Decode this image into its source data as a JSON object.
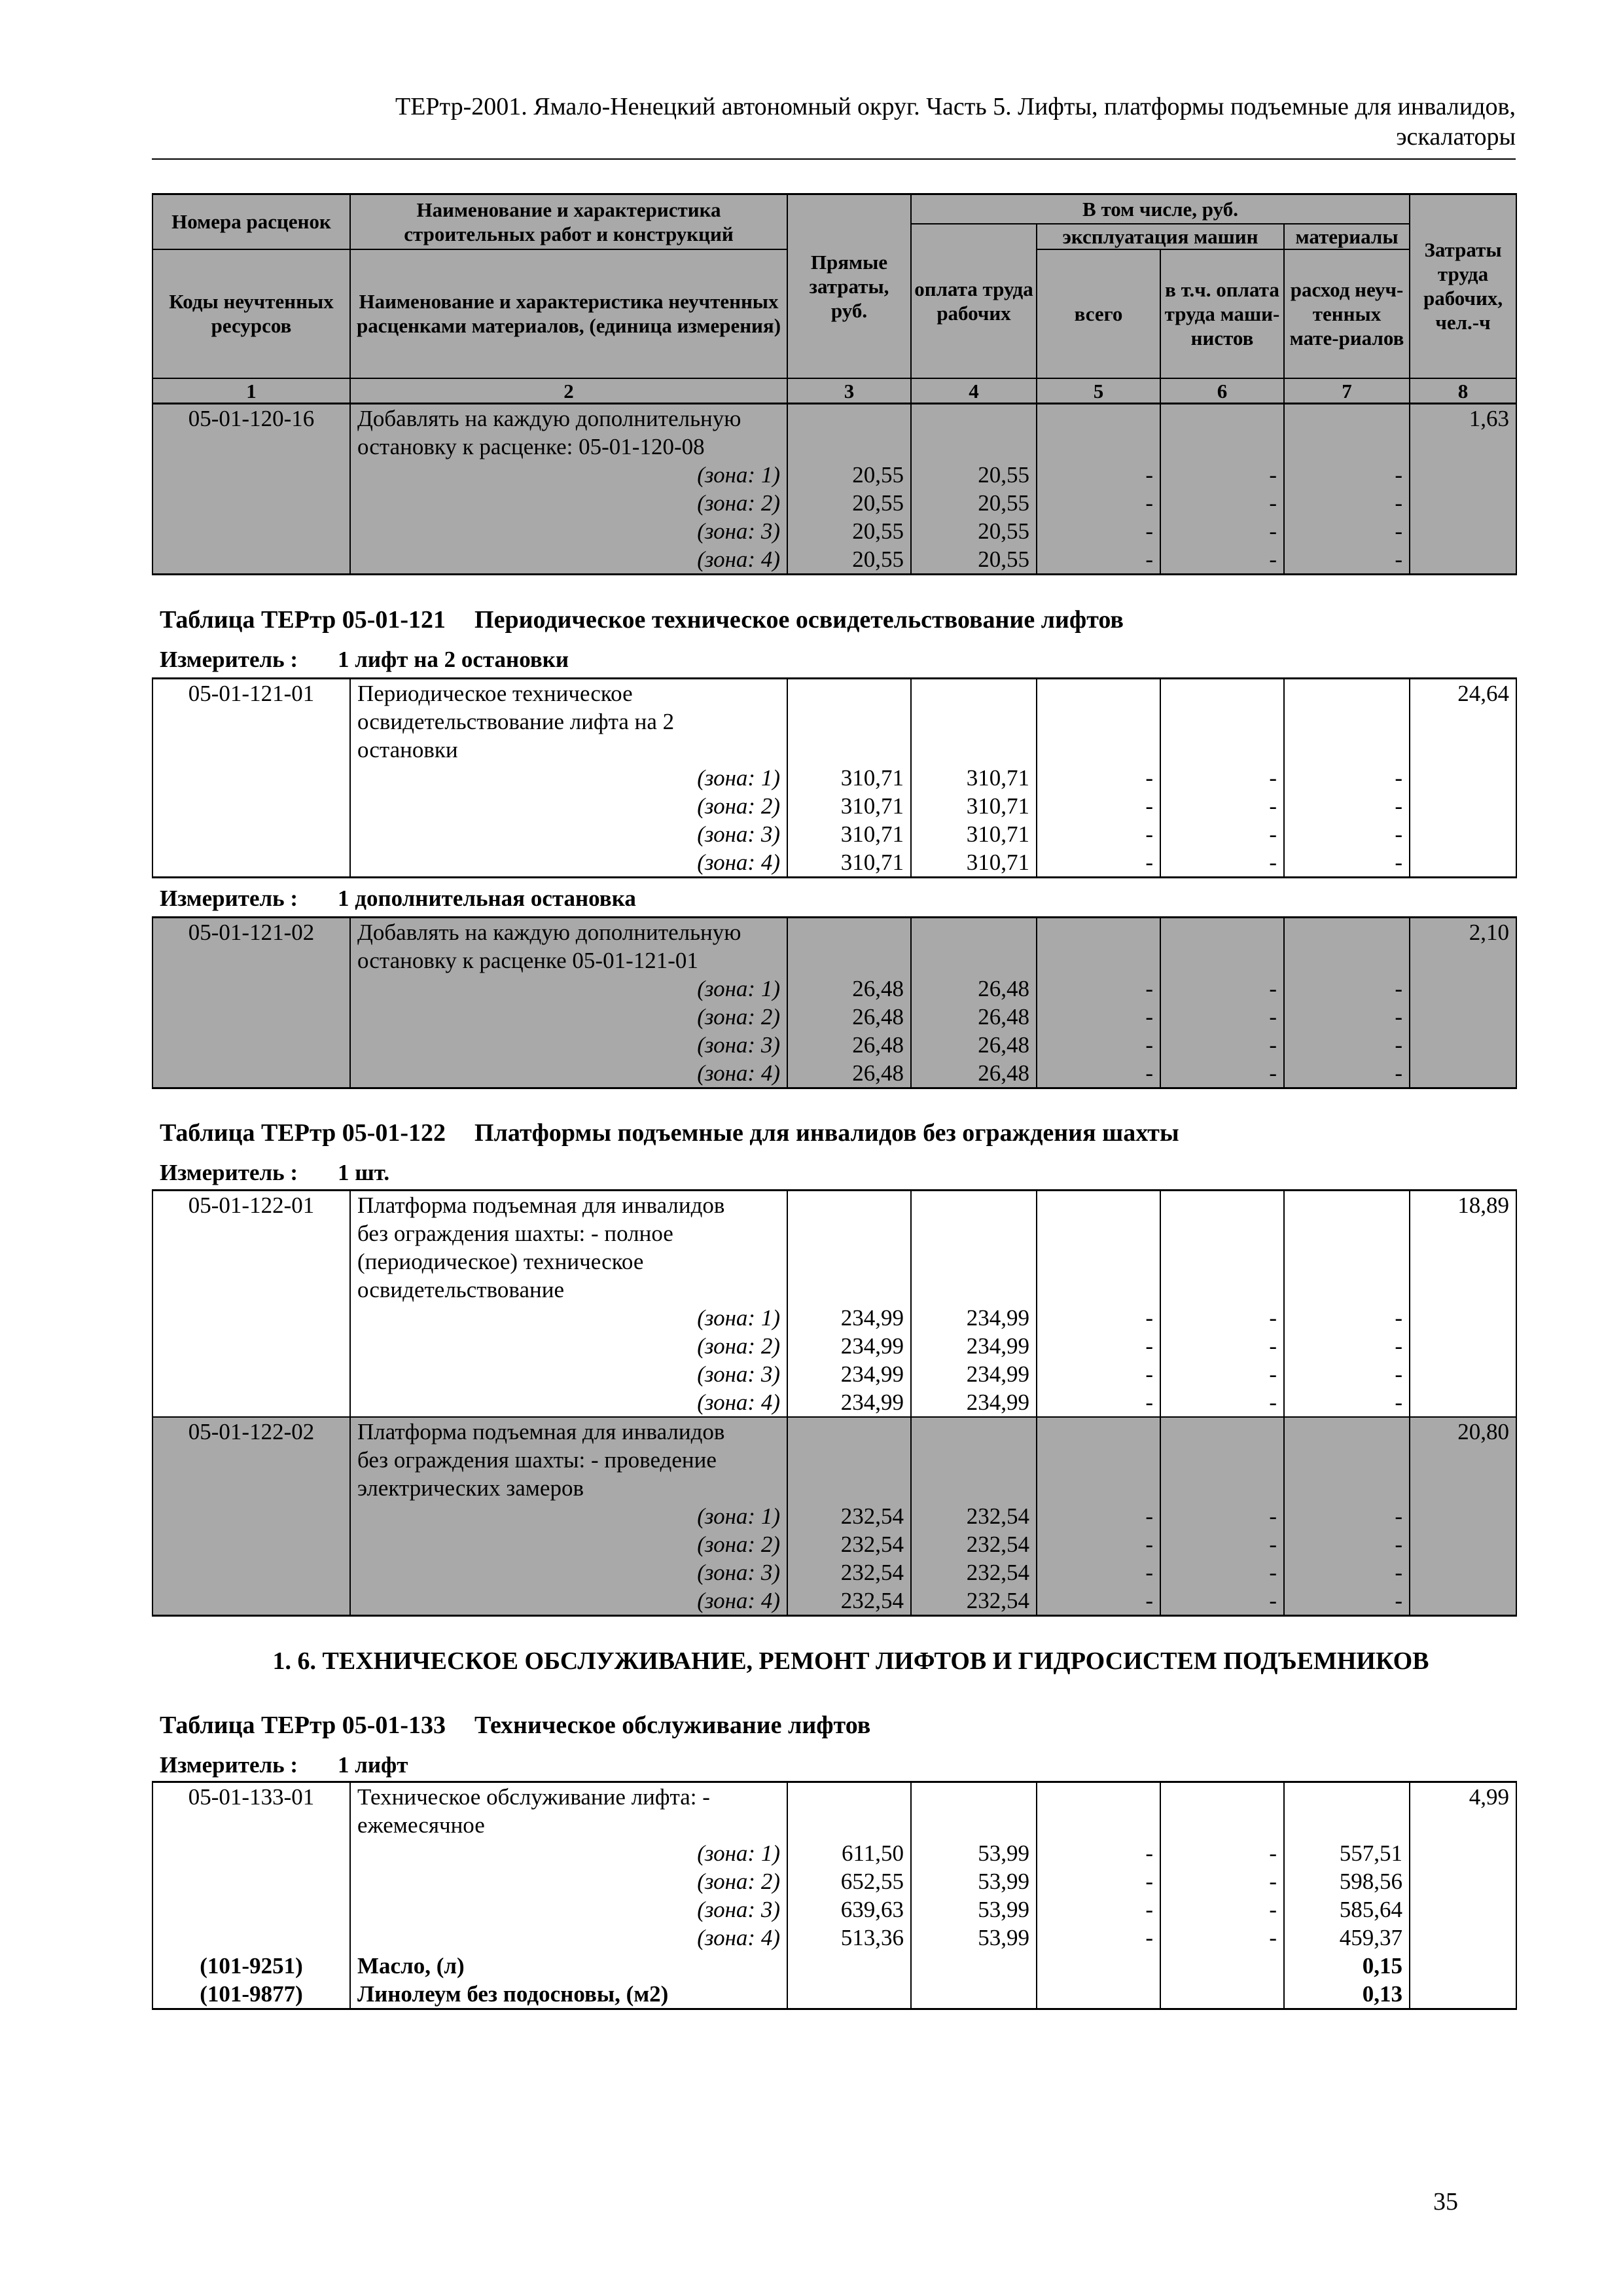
{
  "header": {
    "line1": "ТЕРтр-2001. Ямало-Ненецкий автономный округ. Часть 5. Лифты, платформы подъемные для инвалидов,",
    "line2": "эскалаторы"
  },
  "table_header": {
    "c1a": "Номера расценок",
    "c2a": "Наименование и характеристика строительных работ и конструкций",
    "c3": "Прямые затраты, руб.",
    "incl": "В том числе, руб.",
    "c4": "оплата труда рабочих",
    "mach": "эксплуатация машин",
    "mat": "материалы",
    "c5": "всего",
    "c6": "в т.ч. оплата труда маши-нистов",
    "c7": "расход неуч-тенных мате-риалов",
    "c8": "Затраты труда рабочих, чел.-ч",
    "c1b": "Коды неучтенных ресурсов",
    "c2b": "Наименование и характеристика неучтенных расценками материалов, (единица измерения)",
    "nums": [
      "1",
      "2",
      "3",
      "4",
      "5",
      "6",
      "7",
      "8"
    ]
  },
  "blocks": [
    {
      "shaded": true,
      "entries": [
        {
          "code": "05-01-120-16",
          "lines": [
            "Добавлять на каждую дополнительную",
            "остановку к расценке: 05-01-120-08"
          ],
          "labor": "1,63",
          "zones": [
            [
              "(зона: 1)",
              "20,55",
              "20,55",
              "-",
              "-",
              "-"
            ],
            [
              "(зона: 2)",
              "20,55",
              "20,55",
              "-",
              "-",
              "-"
            ],
            [
              "(зона: 3)",
              "20,55",
              "20,55",
              "-",
              "-",
              "-"
            ],
            [
              "(зона: 4)",
              "20,55",
              "20,55",
              "-",
              "-",
              "-"
            ]
          ]
        }
      ]
    },
    {
      "table_code": "Таблица ТЕРтр 05-01-121",
      "table_name": "Периодическое техническое освидетельствование лифтов",
      "measure_label": "Измеритель :",
      "measure": "1 лифт на 2 остановки",
      "shaded": false,
      "entries": [
        {
          "code": "05-01-121-01",
          "lines": [
            "Периодическое техническое",
            "освидетельствование лифта на 2",
            "остановки"
          ],
          "labor": "24,64",
          "zones": [
            [
              "(зона: 1)",
              "310,71",
              "310,71",
              "-",
              "-",
              "-"
            ],
            [
              "(зона: 2)",
              "310,71",
              "310,71",
              "-",
              "-",
              "-"
            ],
            [
              "(зона: 3)",
              "310,71",
              "310,71",
              "-",
              "-",
              "-"
            ],
            [
              "(зона: 4)",
              "310,71",
              "310,71",
              "-",
              "-",
              "-"
            ]
          ]
        }
      ]
    },
    {
      "measure_label": "Измеритель :",
      "measure": "1 дополнительная остановка",
      "shaded": true,
      "entries": [
        {
          "code": "05-01-121-02",
          "lines": [
            "Добавлять на каждую дополнительную",
            "остановку к расценке 05-01-121-01"
          ],
          "labor": "2,10",
          "zones": [
            [
              "(зона: 1)",
              "26,48",
              "26,48",
              "-",
              "-",
              "-"
            ],
            [
              "(зона: 2)",
              "26,48",
              "26,48",
              "-",
              "-",
              "-"
            ],
            [
              "(зона: 3)",
              "26,48",
              "26,48",
              "-",
              "-",
              "-"
            ],
            [
              "(зона: 4)",
              "26,48",
              "26,48",
              "-",
              "-",
              "-"
            ]
          ]
        }
      ]
    },
    {
      "table_code": "Таблица ТЕРтр 05-01-122",
      "table_name": "Платформы подъемные для инвалидов без ограждения шахты",
      "measure_label": "Измеритель :",
      "measure": "1 шт.",
      "shaded": false,
      "entries": [
        {
          "code": "05-01-122-01",
          "lines": [
            "Платформа подъемная для инвалидов",
            "без ограждения шахты: - полное",
            "(периодическое) техническое",
            "освидетельствование"
          ],
          "labor": "18,89",
          "zones": [
            [
              "(зона: 1)",
              "234,99",
              "234,99",
              "-",
              "-",
              "-"
            ],
            [
              "(зона: 2)",
              "234,99",
              "234,99",
              "-",
              "-",
              "-"
            ],
            [
              "(зона: 3)",
              "234,99",
              "234,99",
              "-",
              "-",
              "-"
            ],
            [
              "(зона: 4)",
              "234,99",
              "234,99",
              "-",
              "-",
              "-"
            ]
          ]
        },
        {
          "shaded": true,
          "code": "05-01-122-02",
          "lines": [
            "Платформа подъемная для инвалидов",
            "без ограждения шахты: - проведение",
            "электрических замеров"
          ],
          "labor": "20,80",
          "zones": [
            [
              "(зона: 1)",
              "232,54",
              "232,54",
              "-",
              "-",
              "-"
            ],
            [
              "(зона: 2)",
              "232,54",
              "232,54",
              "-",
              "-",
              "-"
            ],
            [
              "(зона: 3)",
              "232,54",
              "232,54",
              "-",
              "-",
              "-"
            ],
            [
              "(зона: 4)",
              "232,54",
              "232,54",
              "-",
              "-",
              "-"
            ]
          ]
        }
      ]
    },
    {
      "section_heading": "1. 6. ТЕХНИЧЕСКОЕ ОБСЛУЖИВАНИЕ, РЕМОНТ ЛИФТОВ И ГИДРОСИСТЕМ ПОДЪЕМНИКОВ",
      "table_code": "Таблица ТЕРтр 05-01-133",
      "table_name": "Техническое обслуживание лифтов",
      "measure_label": "Измеритель :",
      "measure": "1 лифт",
      "shaded": false,
      "entries": [
        {
          "code": "05-01-133-01",
          "lines": [
            "Техническое обслуживание лифта: -",
            "ежемесячное"
          ],
          "labor": "4,99",
          "zones": [
            [
              "(зона: 1)",
              "611,50",
              "53,99",
              "-",
              "-",
              "557,51"
            ],
            [
              "(зона: 2)",
              "652,55",
              "53,99",
              "-",
              "-",
              "598,56"
            ],
            [
              "(зона: 3)",
              "639,63",
              "53,99",
              "-",
              "-",
              "585,64"
            ],
            [
              "(зона: 4)",
              "513,36",
              "53,99",
              "-",
              "-",
              "459,37"
            ]
          ],
          "resources": [
            [
              "(101-9251)",
              "Масло, (л)",
              "0,15"
            ],
            [
              "(101-9877)",
              "Линолеум без подосновы, (м2)",
              "0,13"
            ]
          ]
        }
      ]
    }
  ],
  "page_number": "35"
}
